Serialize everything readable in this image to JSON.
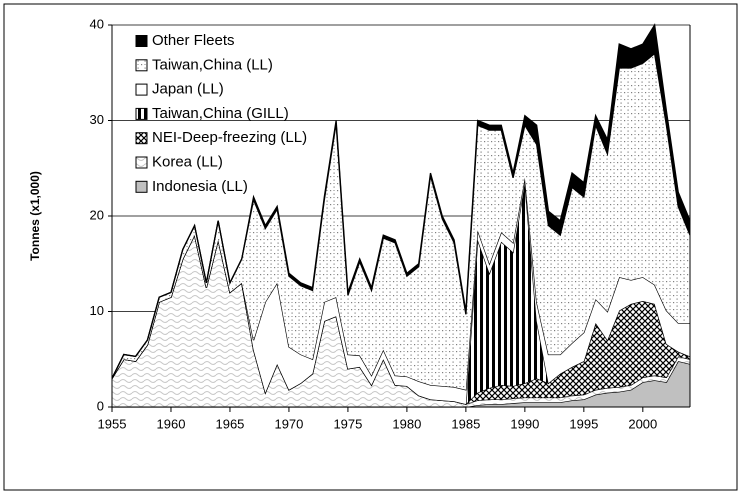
{
  "chart_data": {
    "type": "stacked_area",
    "y_label": "Tonnes (x1,000)",
    "x": [
      1955,
      1956,
      1957,
      1958,
      1959,
      1960,
      1961,
      1962,
      1963,
      1964,
      1965,
      1966,
      1967,
      1968,
      1969,
      1970,
      1971,
      1972,
      1973,
      1974,
      1975,
      1976,
      1977,
      1978,
      1979,
      1980,
      1981,
      1982,
      1983,
      1984,
      1985,
      1986,
      1987,
      1988,
      1989,
      1990,
      1991,
      1992,
      1993,
      1994,
      1995,
      1996,
      1997,
      1998,
      1999,
      2000,
      2001,
      2002,
      2003,
      2004
    ],
    "xlim": [
      1955,
      2004
    ],
    "xticks": [
      1955,
      1960,
      1965,
      1970,
      1975,
      1980,
      1985,
      1990,
      1995,
      2000
    ],
    "ylim": [
      0,
      40
    ],
    "yticks": [
      0,
      10,
      20,
      30,
      40
    ],
    "grid": true,
    "legend": "top-left",
    "series": [
      {
        "name": "Indonesia (LL)",
        "color": "#c0c0c0",
        "values": [
          0,
          0,
          0,
          0,
          0,
          0,
          0,
          0,
          0,
          0,
          0,
          0,
          0,
          0,
          0,
          0,
          0,
          0,
          0,
          0,
          0,
          0,
          0,
          0,
          0,
          0,
          0,
          0,
          0,
          0,
          0,
          0.2,
          0.3,
          0.3,
          0.4,
          0.5,
          0.5,
          0.5,
          0.5,
          0.7,
          0.8,
          1.3,
          1.5,
          1.6,
          1.8,
          2.6,
          2.8,
          2.6,
          4.8,
          4.5
        ]
      },
      {
        "name": "Korea (LL)",
        "color": "#c8c8c8",
        "values": [
          3,
          5,
          4.8,
          6.5,
          11,
          11.5,
          15.5,
          18,
          12.5,
          17.5,
          12,
          13,
          6,
          1.5,
          4.5,
          1.8,
          2.5,
          3.5,
          9,
          9.5,
          4,
          4.2,
          2.3,
          5,
          2.3,
          2.2,
          1.2,
          0.8,
          0.7,
          0.6,
          0.3,
          0.5,
          0.5,
          0.5,
          0.5,
          0.5,
          0.5,
          0.5,
          0.5,
          0.5,
          0.5,
          0.5,
          0.5,
          0.5,
          0.5,
          0.5,
          0.5,
          0.5,
          0.5,
          0.5
        ]
      },
      {
        "name": "NEI-Deep-freezing (LL)",
        "color": "#606060",
        "values": [
          0,
          0,
          0,
          0,
          0,
          0,
          0,
          0,
          0,
          0,
          0,
          0,
          0,
          0,
          0,
          0,
          0,
          0,
          0,
          0,
          0,
          0,
          0,
          0,
          0,
          0,
          0,
          0,
          0,
          0,
          0,
          0.8,
          1.2,
          1.5,
          1.3,
          1.5,
          2,
          1.5,
          2.5,
          3,
          3.5,
          7,
          5,
          8,
          8.5,
          8,
          7.5,
          3.5,
          0.5,
          0.3
        ]
      },
      {
        "name": "Taiwan,China (GILL)",
        "color": "#000000",
        "values": [
          0,
          0,
          0,
          0,
          0,
          0,
          0,
          0,
          0,
          0,
          0,
          0,
          0,
          0,
          0,
          0,
          0,
          0,
          0,
          0,
          0,
          0,
          0,
          0,
          0,
          0,
          0,
          0,
          0,
          0,
          0,
          16,
          12,
          15,
          14,
          21,
          6,
          0,
          0,
          0,
          0,
          0,
          0,
          0,
          0,
          0,
          0,
          0,
          0,
          0
        ]
      },
      {
        "name": "Japan (LL)",
        "color": "#ffffff",
        "values": [
          0,
          0,
          0,
          0,
          0,
          0,
          0,
          0,
          0,
          0,
          0,
          0,
          1,
          9.5,
          8.5,
          4.5,
          3,
          1.5,
          2,
          2,
          1.5,
          1.2,
          1,
          1,
          1,
          1,
          1.5,
          1.5,
          1.5,
          1.5,
          1.5,
          1,
          1,
          1,
          1,
          0.5,
          2,
          3,
          2,
          2.5,
          3,
          2.5,
          3,
          3.5,
          2.5,
          2.5,
          2,
          3.5,
          3,
          3.5
        ]
      },
      {
        "name": "Taiwan,China (LL)",
        "color": "#808080",
        "values": [
          0,
          0.5,
          0.5,
          0.5,
          0.5,
          0.5,
          1,
          1,
          0.5,
          2,
          1,
          2.5,
          14.7,
          7.7,
          7.7,
          7.4,
          7.2,
          7.2,
          10.7,
          18.2,
          6.2,
          9.8,
          8.9,
          11.7,
          13.9,
          10.5,
          12,
          21.9,
          17.5,
          15.1,
          7.9,
          11,
          14,
          10.7,
          6.8,
          5.5,
          16.5,
          13.5,
          12.5,
          16.3,
          14.2,
          18.2,
          16.5,
          21.9,
          22.2,
          22.4,
          24.2,
          19.4,
          12.2,
          9.2
        ]
      },
      {
        "name": "Other Fleets",
        "color": "#000000",
        "values": [
          0,
          0,
          0,
          0,
          0,
          0,
          0,
          0,
          0,
          0,
          0,
          0,
          0.3,
          0.3,
          0.3,
          0.3,
          0.3,
          0.3,
          0.3,
          0.3,
          0.3,
          0.3,
          0.3,
          0.3,
          0.3,
          0.3,
          0.3,
          0.3,
          0.3,
          0.3,
          0.3,
          0.5,
          0.5,
          0.5,
          0.5,
          1,
          2,
          1.5,
          1.5,
          1.5,
          1.5,
          1,
          1.5,
          2.5,
          2,
          2,
          3,
          1.5,
          1.5,
          1.5
        ]
      }
    ]
  }
}
